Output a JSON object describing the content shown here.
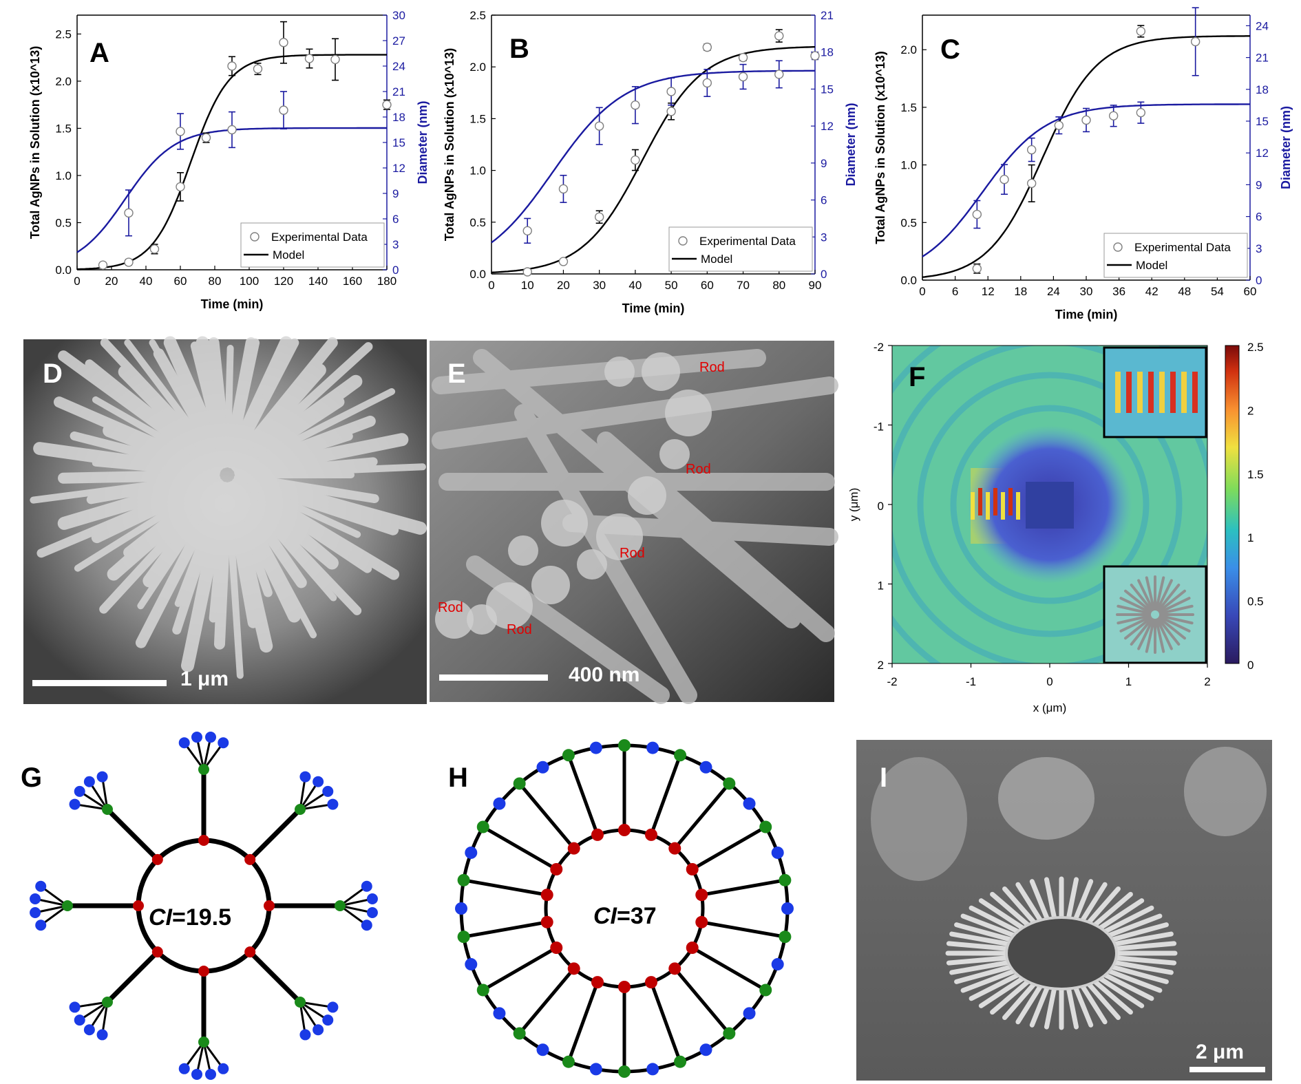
{
  "panels": {
    "A": {
      "label": "A",
      "chart_data": {
        "type": "scatter",
        "xlabel": "Time (min)",
        "ylabel": "Total AgNPs in Solution (x10^13)",
        "y2label": "Diameter (nm)",
        "xlim": [
          0,
          180
        ],
        "ylim": [
          0,
          2.7
        ],
        "y2lim": [
          0,
          30
        ],
        "xticks": [
          "0",
          "20",
          "40",
          "60",
          "80",
          "100",
          "120",
          "140",
          "160",
          "180"
        ],
        "xtick_vals": [
          0,
          20,
          40,
          60,
          80,
          100,
          120,
          140,
          160,
          180
        ],
        "yticks": [
          "0.0",
          "0.5",
          "1.0",
          "1.5",
          "2.0",
          "2.5"
        ],
        "ytick_vals": [
          0,
          0.5,
          1.0,
          1.5,
          2.0,
          2.5
        ],
        "y2ticks": [
          "0",
          "3",
          "6",
          "9",
          "12",
          "15",
          "18",
          "21",
          "24",
          "27",
          "30"
        ],
        "y2tick_vals": [
          0,
          3,
          6,
          9,
          12,
          15,
          18,
          21,
          24,
          27,
          30
        ],
        "series": [
          {
            "name": "Experimental Data",
            "axis": "left",
            "x": [
              15,
              30,
              45,
              60,
              75,
              90,
              105,
              120,
              135,
              150,
              180
            ],
            "y": [
              0.05,
              0.08,
              0.22,
              0.88,
              1.4,
              2.16,
              2.13,
              2.41,
              2.24,
              2.23,
              1.75
            ],
            "err": [
              0.02,
              0.03,
              0.05,
              0.15,
              0.05,
              0.1,
              0.06,
              0.22,
              0.1,
              0.22,
              0.05
            ]
          },
          {
            "name": "Experimental Data",
            "axis": "right",
            "x": [
              30,
              60,
              90,
              120
            ],
            "y": [
              6.7,
              16.3,
              16.5,
              18.8
            ],
            "err": [
              2.7,
              2.1,
              2.1,
              2.2
            ]
          },
          {
            "name": "Model",
            "axis": "left",
            "model": {
              "A": 2.28,
              "x0": 66,
              "k": 0.09
            }
          },
          {
            "name": "Model",
            "axis": "right",
            "model": {
              "A": 16.7,
              "x0": 28,
              "k": 0.07
            }
          }
        ],
        "legend": [
          "Experimental Data",
          "Model"
        ],
        "legend_position": "bottom-right"
      }
    },
    "B": {
      "label": "B",
      "chart_data": {
        "type": "scatter",
        "xlabel": "Time (min)",
        "ylabel": "Total AgNPs in Solution (x10^13)",
        "y2label": "Diameter (nm)",
        "xlim": [
          0,
          90
        ],
        "ylim": [
          0,
          2.5
        ],
        "y2lim": [
          0,
          21
        ],
        "xticks": [
          "0",
          "10",
          "20",
          "30",
          "40",
          "50",
          "60",
          "70",
          "80",
          "90"
        ],
        "xtick_vals": [
          0,
          10,
          20,
          30,
          40,
          50,
          60,
          70,
          80,
          90
        ],
        "yticks": [
          "0.0",
          "0.5",
          "1.0",
          "1.5",
          "2.0",
          "2.5"
        ],
        "ytick_vals": [
          0,
          0.5,
          1.0,
          1.5,
          2.0,
          2.5
        ],
        "y2ticks": [
          "0",
          "3",
          "6",
          "9",
          "12",
          "15",
          "18",
          "21"
        ],
        "y2tick_vals": [
          0,
          3,
          6,
          9,
          12,
          15,
          18,
          21
        ],
        "series": [
          {
            "name": "Experimental Data",
            "axis": "left",
            "x": [
              10,
              20,
              30,
              40,
              50,
              60,
              70,
              80
            ],
            "y": [
              0.02,
              0.12,
              0.55,
              1.1,
              1.57,
              2.19,
              2.09,
              2.3
            ],
            "err": [
              0.01,
              0.02,
              0.06,
              0.1,
              0.08,
              0.03,
              0.03,
              0.06
            ]
          },
          {
            "name": "Experimental Data",
            "axis": "right",
            "x": [
              10,
              20,
              30,
              40,
              50,
              60,
              70,
              80,
              90
            ],
            "y": [
              3.5,
              6.9,
              12.0,
              13.7,
              14.8,
              15.5,
              16.0,
              16.2,
              17.7
            ],
            "err": [
              1.0,
              1.1,
              1.5,
              1.5,
              1.1,
              1.1,
              1.0,
              1.1,
              0.3
            ]
          },
          {
            "name": "Model",
            "axis": "left",
            "model": {
              "A": 2.2,
              "x0": 42,
              "k": 0.12
            }
          },
          {
            "name": "Model",
            "axis": "right",
            "model": {
              "A": 16.5,
              "x0": 17,
              "k": 0.1
            }
          }
        ],
        "legend": [
          "Experimental Data",
          "Model"
        ],
        "legend_position": "bottom-right"
      }
    },
    "C": {
      "label": "C",
      "chart_data": {
        "type": "scatter",
        "xlabel": "Time (min)",
        "ylabel": "Total AgNPs in Solution (x10^13)",
        "y2label": "Diameter (nm)",
        "xlim": [
          0,
          60
        ],
        "ylim": [
          0,
          2.3
        ],
        "y2lim": [
          0,
          25
        ],
        "xticks": [
          "0",
          "6",
          "12",
          "18",
          "24",
          "30",
          "36",
          "42",
          "48",
          "54",
          "60"
        ],
        "xtick_vals": [
          0,
          6,
          12,
          18,
          24,
          30,
          36,
          42,
          48,
          54,
          60
        ],
        "yticks": [
          "0.0",
          "0.5",
          "1.0",
          "1.5",
          "2.0"
        ],
        "ytick_vals": [
          0,
          0.5,
          1.0,
          1.5,
          2.0
        ],
        "y2ticks": [
          "0",
          "3",
          "6",
          "9",
          "12",
          "15",
          "18",
          "21",
          "24"
        ],
        "y2tick_vals": [
          0,
          3,
          6,
          9,
          12,
          15,
          18,
          21,
          24
        ],
        "series": [
          {
            "name": "Experimental Data",
            "axis": "left",
            "x": [
              10,
              20,
              40
            ],
            "y": [
              0.1,
              0.84,
              2.16
            ],
            "err": [
              0.04,
              0.16,
              0.05
            ]
          },
          {
            "name": "Experimental Data",
            "axis": "right",
            "x": [
              10,
              15,
              20,
              25,
              30,
              35,
              40,
              50
            ],
            "y": [
              6.2,
              9.5,
              12.3,
              14.6,
              15.1,
              15.5,
              15.8,
              22.5
            ],
            "err": [
              1.3,
              1.4,
              1.1,
              0.8,
              1.1,
              1.0,
              1.0,
              3.2
            ]
          },
          {
            "name": "Model",
            "axis": "left",
            "model": {
              "A": 2.12,
              "x0": 22,
              "k": 0.2
            }
          },
          {
            "name": "Model",
            "axis": "right",
            "model": {
              "A": 16.6,
              "x0": 11,
              "k": 0.17
            }
          }
        ],
        "legend": [
          "Experimental Data",
          "Model"
        ],
        "legend_position": "bottom-right"
      }
    },
    "D": {
      "label": "D",
      "scale_bar": "1 μm"
    },
    "E": {
      "label": "E",
      "scale_bar": "400 nm",
      "annotations": [
        "Rod",
        "Rod",
        "Rod",
        "Rod",
        "Rod"
      ]
    },
    "F": {
      "label": "F",
      "xlabel": "x (μm)",
      "ylabel": "y (μm)",
      "xticks": [
        "-2",
        "-1",
        "0",
        "1",
        "2"
      ],
      "yticks": [
        "-2",
        "-1",
        "0",
        "1",
        "2"
      ],
      "colorbar_ticks": [
        "2.5",
        "2",
        "1.5",
        "1",
        "0.5",
        "0"
      ],
      "colorbar_range": [
        0,
        2.5
      ]
    },
    "G": {
      "label": "G",
      "ci_prefix": "CI",
      "ci_value": "=19.5"
    },
    "H": {
      "label": "H",
      "ci_prefix": "CI",
      "ci_value": "=37"
    },
    "I": {
      "label": "I",
      "scale_bar": "2 μm"
    }
  },
  "colors": {
    "model_black": "#000000",
    "diameter_blue": "#1a1aa0",
    "node_red": "#c00000",
    "node_green": "#1a8a1a",
    "node_blue": "#1a3ae6"
  }
}
